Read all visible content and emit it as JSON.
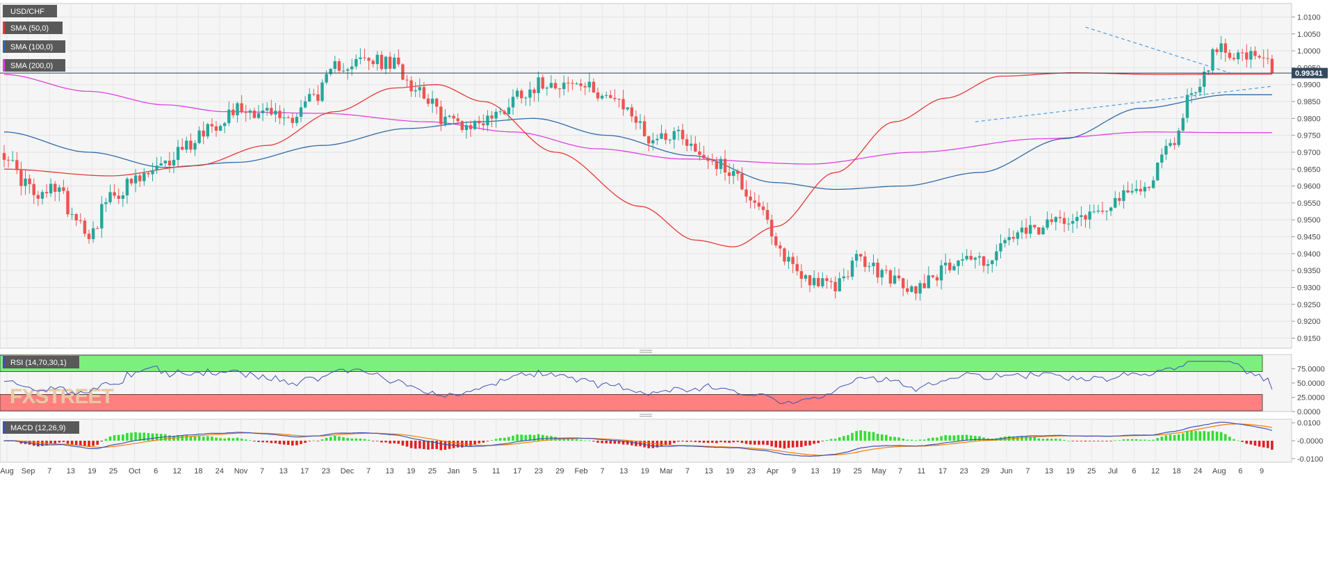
{
  "brand": {
    "logo_text": "FXSTREET"
  },
  "colors": {
    "bull": "#26a69a",
    "bear": "#ef5350",
    "sma50": "#e53935",
    "sma100": "#2f6aa8",
    "sma200": "#e040e0",
    "rsi": "#3f51b5",
    "rsi_upper_band": "#7cf07c",
    "rsi_lower_band": "#ff8080",
    "macd": "#3f51b5",
    "signal": "#f57c00",
    "hist_pos": "#33dd33",
    "hist_neg": "#dd2222",
    "current_price_bg": "#34495e",
    "trend": "#4a9de0"
  },
  "chart_data": [
    {
      "type": "candlestick",
      "title": "USD/CHF",
      "current_price": 0.99341,
      "current_price_label": "0.99341",
      "ylim": [
        0.912,
        1.014
      ],
      "yticks": [
        "1.0100",
        "1.0050",
        "1.0000",
        "0.9950",
        "0.9900",
        "0.9850",
        "0.9800",
        "0.9750",
        "0.9700",
        "0.9650",
        "0.9600",
        "0.9550",
        "0.9500",
        "0.9450",
        "0.9400",
        "0.9350",
        "0.9300",
        "0.9250",
        "0.9200",
        "0.9150"
      ],
      "xticks": [
        "Aug",
        "Sep",
        "7",
        "13",
        "19",
        "25",
        "Oct",
        "6",
        "12",
        "18",
        "24",
        "Nov",
        "7",
        "13",
        "17",
        "23",
        "Dec",
        "7",
        "13",
        "19",
        "25",
        "Jan",
        "5",
        "11",
        "17",
        "23",
        "29",
        "Feb",
        "7",
        "13",
        "19",
        "Mar",
        "7",
        "13",
        "19",
        "23",
        "Apr",
        "9",
        "13",
        "19",
        "25",
        "May",
        "7",
        "11",
        "17",
        "23",
        "29",
        "Jun",
        "7",
        "13",
        "19",
        "25",
        "Jul",
        "6",
        "12",
        "18",
        "24",
        "Aug",
        "6",
        "9"
      ],
      "legend": [
        "SMA (50,0)",
        "SMA (100,0)",
        "SMA (200,0)"
      ],
      "sma50_anchors": [
        [
          0,
          0.965
        ],
        [
          25,
          0.963
        ],
        [
          45,
          0.966
        ],
        [
          62,
          0.972
        ],
        [
          78,
          0.982
        ],
        [
          92,
          0.989
        ],
        [
          102,
          0.99
        ],
        [
          113,
          0.985
        ],
        [
          130,
          0.97
        ],
        [
          150,
          0.954
        ],
        [
          163,
          0.944
        ],
        [
          172,
          0.942
        ],
        [
          182,
          0.948
        ],
        [
          196,
          0.964
        ],
        [
          210,
          0.979
        ],
        [
          222,
          0.986
        ],
        [
          235,
          0.9925
        ],
        [
          252,
          0.9935
        ],
        [
          272,
          0.993
        ],
        [
          289,
          0.9931
        ]
      ],
      "sma100_anchors": [
        [
          0,
          0.976
        ],
        [
          20,
          0.97
        ],
        [
          38,
          0.9655
        ],
        [
          55,
          0.967
        ],
        [
          75,
          0.972
        ],
        [
          95,
          0.977
        ],
        [
          112,
          0.979
        ],
        [
          125,
          0.98
        ],
        [
          142,
          0.975
        ],
        [
          162,
          0.969
        ],
        [
          182,
          0.961
        ],
        [
          196,
          0.959
        ],
        [
          212,
          0.96
        ],
        [
          230,
          0.964
        ],
        [
          250,
          0.974
        ],
        [
          268,
          0.983
        ],
        [
          289,
          0.987
        ]
      ],
      "sma200_anchors": [
        [
          0,
          0.993
        ],
        [
          20,
          0.988
        ],
        [
          38,
          0.984
        ],
        [
          52,
          0.982
        ],
        [
          75,
          0.9815
        ],
        [
          100,
          0.979
        ],
        [
          120,
          0.976
        ],
        [
          140,
          0.971
        ],
        [
          160,
          0.968
        ],
        [
          190,
          0.9665
        ],
        [
          215,
          0.97
        ],
        [
          245,
          0.974
        ],
        [
          270,
          0.976
        ],
        [
          289,
          0.9758
        ]
      ],
      "trendlines": [
        {
          "from": [
            255,
            1.007
          ],
          "to": [
            289,
            0.9935
          ]
        },
        {
          "from": [
            229,
            0.979
          ],
          "to": [
            299,
            0.9895
          ]
        }
      ]
    },
    {
      "type": "line",
      "title": "RSI (14,70,30,1)",
      "ylim": [
        0,
        100
      ],
      "yticks": [
        "75.0000",
        "50.0000",
        "25.0000",
        "0.0000"
      ],
      "overbought": 70,
      "oversold": 30
    },
    {
      "type": "line+bar",
      "title": "MACD (12,26,9)",
      "ylim": [
        -0.012,
        0.012
      ],
      "yticks": [
        "0.0100",
        "-0.0000",
        "-0.0100"
      ]
    }
  ]
}
